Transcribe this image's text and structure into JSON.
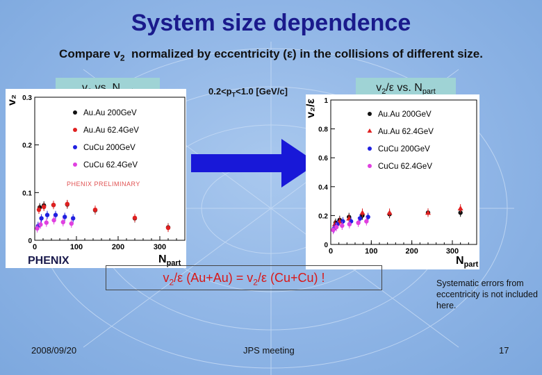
{
  "slide": {
    "title": "System size dependence",
    "subtitle": "Compare v₂ normalized by eccentricity (ε) in the collisions of different size.",
    "pt_range": "0.2<pₜ<1.0 [GeV/c]",
    "conclusion": "v₂/ε (Au+Au) = v₂/ε (Cu+Cu) !",
    "note": "Systematic errors from eccentricity is not included here.",
    "date": "2008/09/20",
    "meeting": "JPS meeting",
    "page": "17",
    "logo_text": "PHENIX",
    "colors": {
      "title": "#1a1a8c",
      "conclusion": "#d81818",
      "label_bg": "#9fd3d5"
    }
  },
  "left_panel": {
    "label": "v₂ vs. N_part"
  },
  "right_panel": {
    "label": "v₂/ε vs. N_part"
  },
  "chart_data": [
    {
      "type": "scatter",
      "ylabel": "v₂",
      "xlabel": "N_part",
      "xlim": [
        0,
        360
      ],
      "ylim": [
        0,
        0.3
      ],
      "x_ticks": [
        "0",
        "100",
        "200",
        "300"
      ],
      "y_ticks": [
        "0",
        "0.1",
        "0.2",
        "0.3"
      ],
      "annotation": "PHENIX PRELIMINARY",
      "legend_position": "top-left",
      "series": [
        {
          "name": "Au.Au 200GeV",
          "color": "#111111",
          "marker": "circle",
          "x": [
            12,
            22,
            45,
            78,
            145,
            240,
            320
          ],
          "y": [
            0.069,
            0.073,
            0.074,
            0.075,
            0.063,
            0.046,
            0.027
          ]
        },
        {
          "name": "Au.Au 62.4GeV",
          "color": "#e02020",
          "marker": "circle",
          "x": [
            10,
            22,
            45,
            78,
            145,
            240,
            320
          ],
          "y": [
            0.064,
            0.07,
            0.074,
            0.076,
            0.064,
            0.047,
            0.026
          ]
        },
        {
          "name": "CuCu 200GeV",
          "color": "#2020e0",
          "marker": "circle",
          "x": [
            8,
            16,
            30,
            50,
            72,
            92
          ],
          "y": [
            0.03,
            0.046,
            0.053,
            0.053,
            0.049,
            0.046
          ]
        },
        {
          "name": "CuCu 62.4GeV",
          "color": "#e040e0",
          "marker": "circle",
          "x": [
            6,
            14,
            28,
            46,
            68,
            88
          ],
          "y": [
            0.025,
            0.033,
            0.037,
            0.042,
            0.038,
            0.035
          ]
        }
      ]
    },
    {
      "type": "scatter",
      "ylabel": "v₂/ε",
      "xlabel": "N_part",
      "xlim": [
        0,
        360
      ],
      "ylim": [
        0,
        1.0
      ],
      "x_ticks": [
        "0",
        "100",
        "200",
        "300"
      ],
      "y_ticks": [
        "0",
        "0.2",
        "0.4",
        "0.6",
        "0.8",
        "1"
      ],
      "legend_position": "top-right",
      "series": [
        {
          "name": "Au.Au 200GeV",
          "color": "#111111",
          "marker": "circle",
          "x": [
            12,
            22,
            45,
            78,
            145,
            240,
            320
          ],
          "y": [
            0.15,
            0.17,
            0.19,
            0.2,
            0.21,
            0.22,
            0.22
          ]
        },
        {
          "name": "Au.Au 62.4GeV",
          "color": "#e02020",
          "marker": "triangle",
          "x": [
            10,
            22,
            45,
            78,
            145,
            240,
            320
          ],
          "y": [
            0.14,
            0.16,
            0.18,
            0.22,
            0.22,
            0.22,
            0.25
          ]
        },
        {
          "name": "CuCu 200GeV",
          "color": "#2020e0",
          "marker": "circle",
          "x": [
            8,
            16,
            30,
            50,
            72,
            92
          ],
          "y": [
            0.11,
            0.14,
            0.16,
            0.16,
            0.18,
            0.19
          ]
        },
        {
          "name": "CuCu 62.4GeV",
          "color": "#e040e0",
          "marker": "circle",
          "x": [
            6,
            14,
            28,
            46,
            68,
            88
          ],
          "y": [
            0.1,
            0.12,
            0.13,
            0.14,
            0.15,
            0.16
          ]
        }
      ]
    }
  ]
}
